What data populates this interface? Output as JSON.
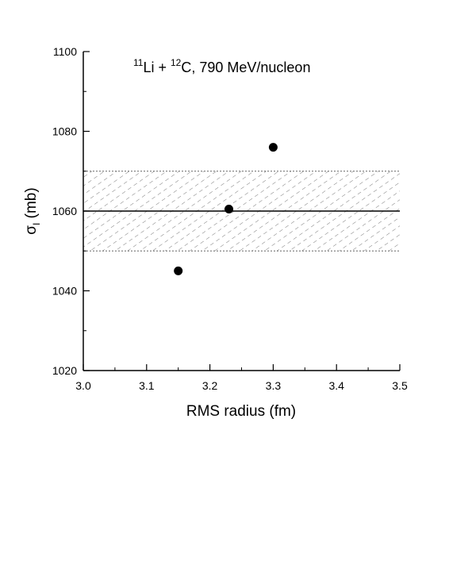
{
  "chart_data": {
    "type": "scatter",
    "xlabel": "RMS radius (fm)",
    "ylabel": {
      "main": "σ",
      "sub": "I",
      "unit": " (mb)"
    },
    "xlim": [
      3.0,
      3.5
    ],
    "ylim": [
      1020,
      1100
    ],
    "xticks": [
      3.0,
      3.1,
      3.2,
      3.3,
      3.4,
      3.5
    ],
    "xtick_labels": [
      "3.0",
      "3.1",
      "3.2",
      "3.3",
      "3.4",
      "3.5"
    ],
    "yticks": [
      1020,
      1040,
      1060,
      1080,
      1100
    ],
    "ytick_labels": [
      "1020",
      "1040",
      "1060",
      "1080",
      "1100"
    ],
    "annotation": {
      "sup1": "11",
      "text1": "Li + ",
      "sup2": "12",
      "text2": "C, 790 MeV/nucleon"
    },
    "series": [
      {
        "points": [
          {
            "x": 3.15,
            "y": 1045
          },
          {
            "x": 3.23,
            "y": 1060.5
          },
          {
            "x": 3.3,
            "y": 1076
          }
        ]
      }
    ],
    "reference_line": {
      "y": 1060
    },
    "error_band": {
      "y_low": 1050,
      "y_high": 1070,
      "pattern": "hatched"
    },
    "grid": false,
    "legend": "none"
  }
}
